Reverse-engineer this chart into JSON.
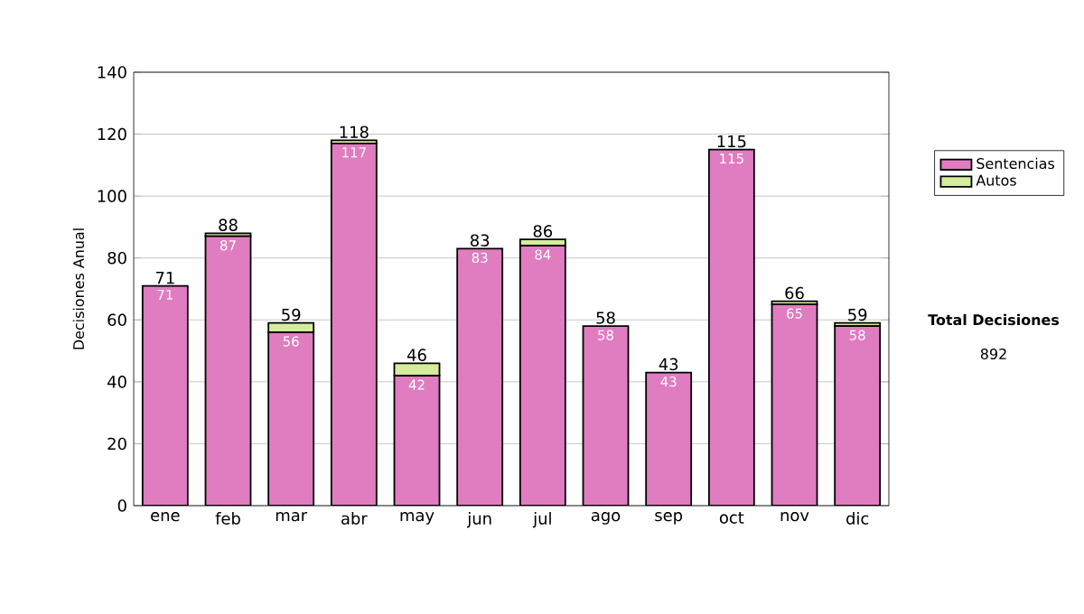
{
  "chart_data": {
    "type": "bar",
    "stacked": true,
    "ylabel": "Decisiones Anual",
    "categories": [
      "ene",
      "feb",
      "mar",
      "abr",
      "may",
      "jun",
      "jul",
      "ago",
      "sep",
      "oct",
      "nov",
      "dic"
    ],
    "series": [
      {
        "name": "Sentencias",
        "color": "#e07cc0",
        "values": [
          71,
          87,
          56,
          117,
          42,
          83,
          84,
          58,
          43,
          115,
          65,
          58
        ],
        "value_labels": [
          "71",
          "87",
          "56",
          "117",
          "42",
          "83",
          "84",
          "58",
          "43",
          "115",
          "65",
          "58"
        ]
      },
      {
        "name": "Autos",
        "color": "#d4ec9c",
        "values": [
          0,
          1,
          3,
          1,
          4,
          0,
          2,
          0,
          0,
          0,
          1,
          1
        ]
      }
    ],
    "totals": [
      "71",
      "88",
      "59",
      "118",
      "46",
      "83",
      "86",
      "58",
      "43",
      "115",
      "66",
      "59"
    ],
    "ylim": [
      0,
      140
    ],
    "yticks": [
      0,
      20,
      40,
      60,
      80,
      100,
      120,
      140
    ],
    "grid": "y",
    "legend": "right",
    "annotations": [
      "Total Decisiones",
      "892"
    ]
  }
}
